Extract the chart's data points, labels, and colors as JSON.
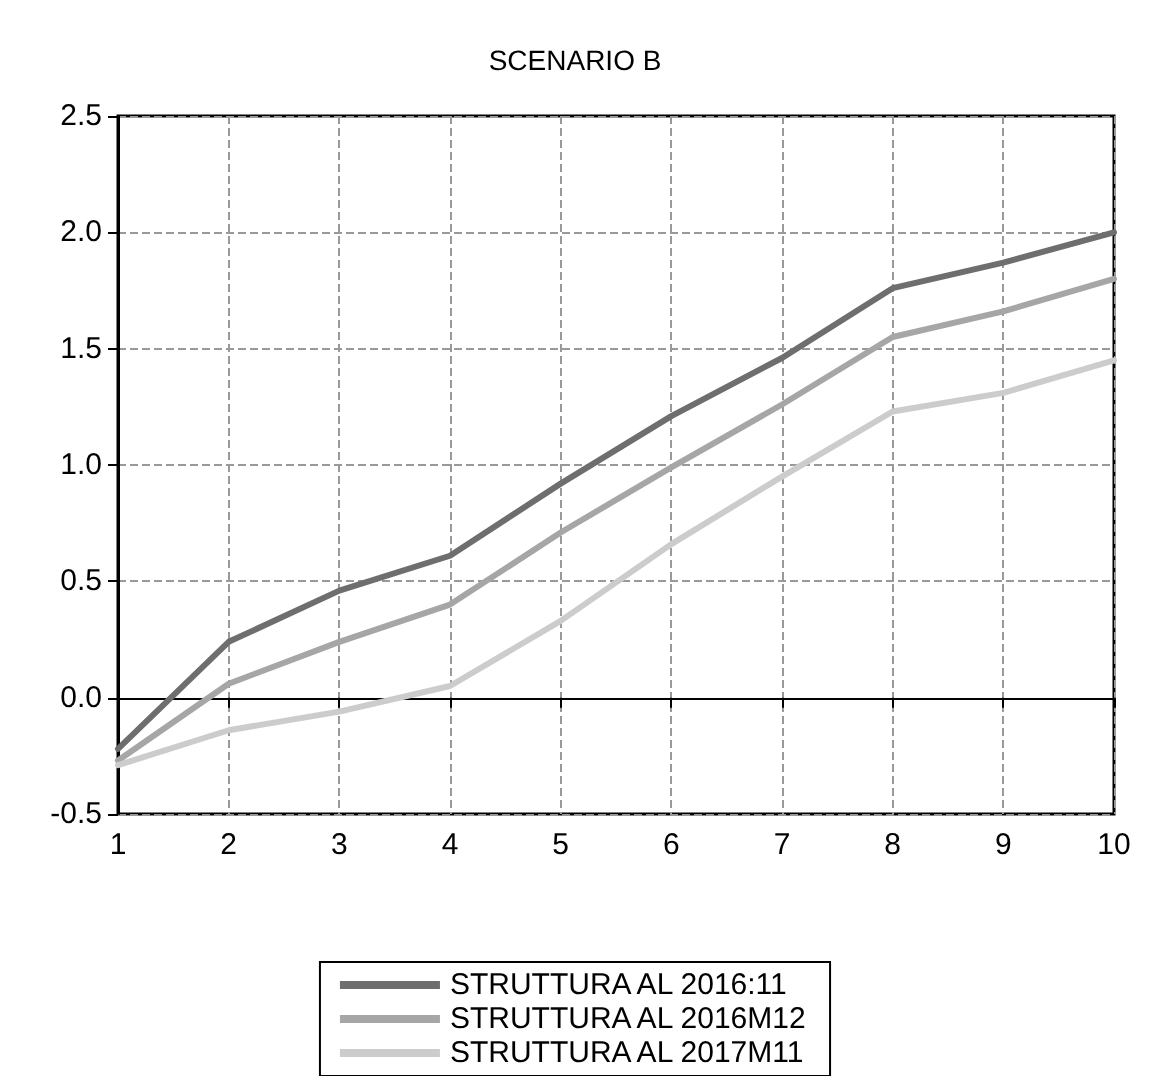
{
  "chart_data": {
    "type": "line",
    "title": "SCENARIO B",
    "x": [
      1,
      2,
      3,
      4,
      5,
      6,
      7,
      8,
      9,
      10
    ],
    "series": [
      {
        "name": "STRUTTURA AL 2016:11",
        "color": "#6e6e6e",
        "values": [
          -0.22,
          0.24,
          0.46,
          0.61,
          0.92,
          1.21,
          1.46,
          1.76,
          1.87,
          2.0
        ]
      },
      {
        "name": "STRUTTURA AL 2016M12",
        "color": "#a6a6a6",
        "values": [
          -0.27,
          0.06,
          0.24,
          0.4,
          0.71,
          0.99,
          1.26,
          1.55,
          1.66,
          1.8
        ]
      },
      {
        "name": "STRUTTURA AL 2017M11",
        "color": "#cccccc",
        "values": [
          -0.29,
          -0.14,
          -0.06,
          0.05,
          0.33,
          0.66,
          0.95,
          1.23,
          1.31,
          1.45
        ]
      }
    ],
    "xlim": [
      1,
      10
    ],
    "xticks": [
      1,
      2,
      3,
      4,
      5,
      6,
      7,
      8,
      9,
      10
    ],
    "ylim": [
      -0.5,
      2.5
    ],
    "yticks": [
      {
        "value": -0.5,
        "label": "-0.5"
      },
      {
        "value": 0,
        "label": "0.0"
      },
      {
        "value": 0.5,
        "label": "0.5"
      },
      {
        "value": 1,
        "label": "1.0"
      },
      {
        "value": 1.5,
        "label": "1.5"
      },
      {
        "value": 2,
        "label": "2.0"
      },
      {
        "value": 2.5,
        "label": "2.5"
      }
    ],
    "grid": true,
    "legend": "bottom",
    "marker": "none",
    "line_style": "solid"
  }
}
